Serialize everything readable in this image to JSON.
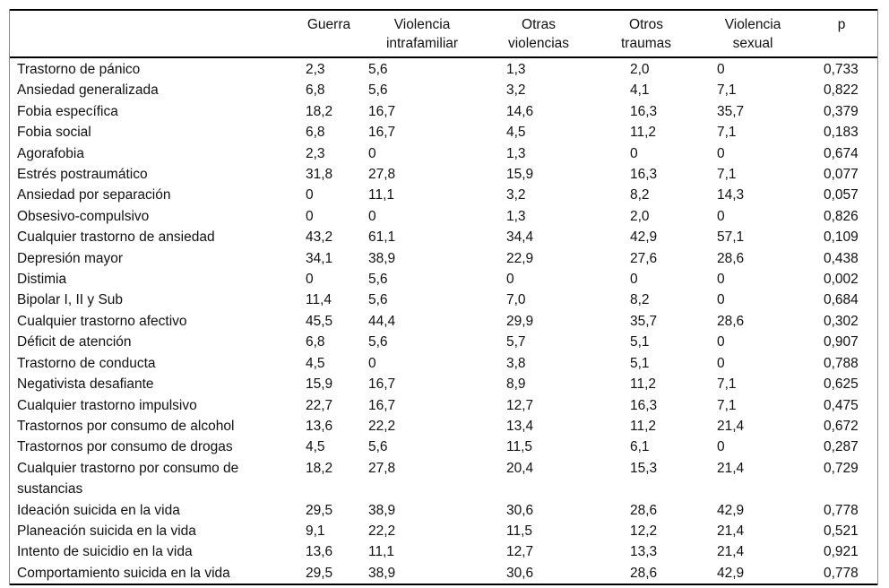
{
  "table": {
    "columns": [
      {
        "line1": "",
        "line2": ""
      },
      {
        "line1": "Guerra",
        "line2": ""
      },
      {
        "line1": "Violencia",
        "line2": "intrafamiliar"
      },
      {
        "line1": "Otras",
        "line2": "violencias"
      },
      {
        "line1": "Otros",
        "line2": "traumas"
      },
      {
        "line1": "Violencia",
        "line2": "sexual"
      },
      {
        "line1": "p",
        "line2": ""
      }
    ],
    "rows": [
      {
        "label": "Trastorno de pánico",
        "values": [
          "2,3",
          "5,6",
          "1,3",
          "2,0",
          "0",
          "0,733"
        ]
      },
      {
        "label": "Ansiedad generalizada",
        "values": [
          "6,8",
          "5,6",
          "3,2",
          "4,1",
          "7,1",
          "0,822"
        ]
      },
      {
        "label": "Fobia específica",
        "values": [
          "18,2",
          "16,7",
          "14,6",
          "16,3",
          "35,7",
          "0,379"
        ]
      },
      {
        "label": "Fobia social",
        "values": [
          "6,8",
          "16,7",
          "4,5",
          "11,2",
          "7,1",
          "0,183"
        ]
      },
      {
        "label": "Agorafobia",
        "values": [
          "2,3",
          "0",
          "1,3",
          "0",
          "0",
          "0,674"
        ]
      },
      {
        "label": "Estrés postraumático",
        "values": [
          "31,8",
          "27,8",
          "15,9",
          "16,3",
          "7,1",
          "0,077"
        ]
      },
      {
        "label": "Ansiedad por separación",
        "values": [
          "0",
          "11,1",
          "3,2",
          "8,2",
          "14,3",
          "0,057"
        ]
      },
      {
        "label": "Obsesivo-compulsivo",
        "values": [
          "0",
          "0",
          "1,3",
          "2,0",
          "0",
          "0,826"
        ]
      },
      {
        "label": "Cualquier trastorno de ansiedad",
        "values": [
          "43,2",
          "61,1",
          "34,4",
          "42,9",
          "57,1",
          "0,109"
        ]
      },
      {
        "label": "Depresión mayor",
        "values": [
          "34,1",
          "38,9",
          "22,9",
          "27,6",
          "28,6",
          "0,438"
        ]
      },
      {
        "label": "Distimia",
        "values": [
          "0",
          "5,6",
          "0",
          "0",
          "0",
          "0,002"
        ]
      },
      {
        "label": "Bipolar I, II y Sub",
        "values": [
          "11,4",
          "5,6",
          "7,0",
          "8,2",
          "0",
          "0,684"
        ]
      },
      {
        "label": "Cualquier trastorno afectivo",
        "values": [
          "45,5",
          "44,4",
          "29,9",
          "35,7",
          "28,6",
          "0,302"
        ]
      },
      {
        "label": "Déficit de atención",
        "values": [
          "6,8",
          "5,6",
          "5,7",
          "5,1",
          "0",
          "0,907"
        ]
      },
      {
        "label": "Trastorno de conducta",
        "values": [
          "4,5",
          "0",
          "3,8",
          "5,1",
          "0",
          "0,788"
        ]
      },
      {
        "label": "Negativista desafiante",
        "values": [
          "15,9",
          "16,7",
          "8,9",
          "11,2",
          "7,1",
          "0,625"
        ]
      },
      {
        "label": "Cualquier trastorno impulsivo",
        "values": [
          "22,7",
          "16,7",
          "12,7",
          "16,3",
          "7,1",
          "0,475"
        ]
      },
      {
        "label": "Trastornos por consumo de alcohol",
        "values": [
          "13,6",
          "22,2",
          "13,4",
          "11,2",
          "21,4",
          "0,672"
        ]
      },
      {
        "label": "Trastornos por consumo de drogas",
        "values": [
          "4,5",
          "5,6",
          "11,5",
          "6,1",
          "0",
          "0,287"
        ]
      },
      {
        "label": "Cualquier trastorno por consumo de sustancias",
        "values": [
          "18,2",
          "27,8",
          "20,4",
          "15,3",
          "21,4",
          "0,729"
        ]
      },
      {
        "label": "Ideación suicida en la vida",
        "values": [
          "29,5",
          "38,9",
          "30,6",
          "28,6",
          "42,9",
          "0,778"
        ]
      },
      {
        "label": "Planeación suicida en la vida",
        "values": [
          "9,1",
          "22,2",
          "11,5",
          "12,2",
          "21,4",
          "0,521"
        ]
      },
      {
        "label": "Intento de suicidio en la vida",
        "values": [
          "13,6",
          "11,1",
          "12,7",
          "13,3",
          "21,4",
          "0,921"
        ]
      },
      {
        "label": "Comportamiento suicida en la vida",
        "values": [
          "29,5",
          "38,9",
          "30,6",
          "28,6",
          "42,9",
          "0,778"
        ]
      }
    ]
  }
}
